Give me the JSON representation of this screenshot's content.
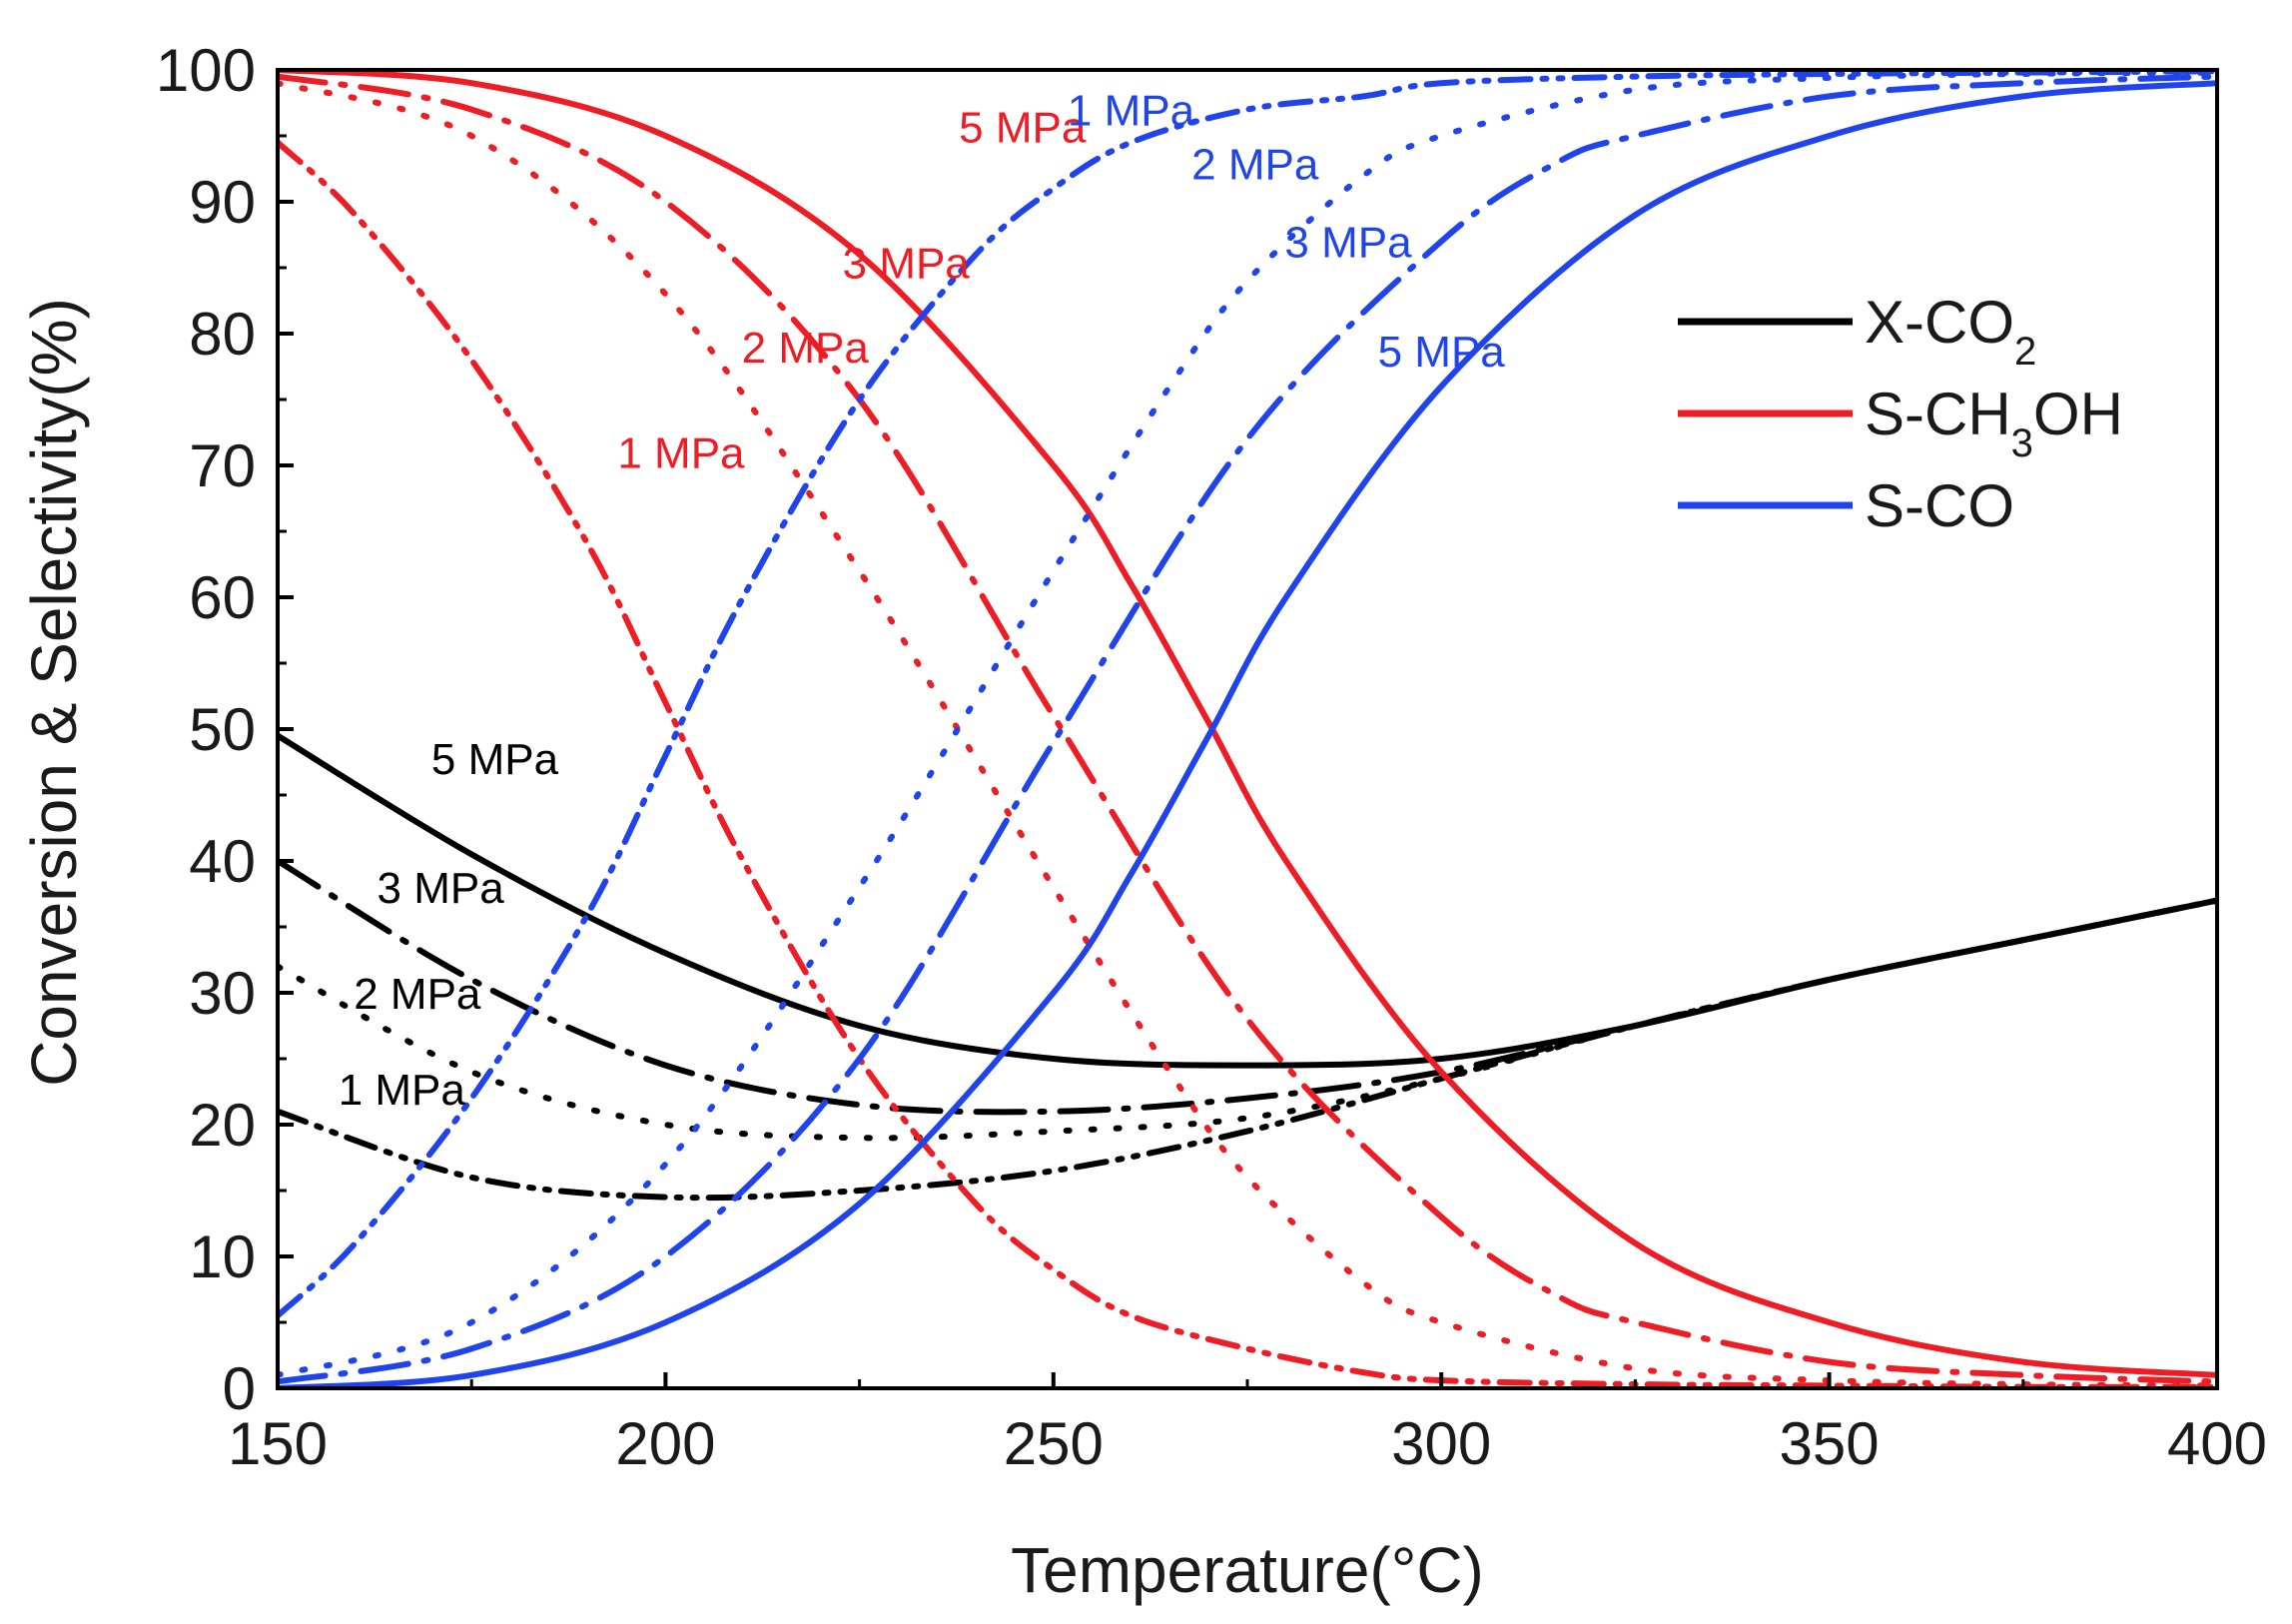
{
  "chart_data": {
    "type": "line",
    "title": "",
    "xlabel": "Temperature(°C)",
    "ylabel": "Conversion & Selectivity(%)",
    "xlim": [
      150,
      400
    ],
    "ylim": [
      0,
      100
    ],
    "xticks": [
      150,
      200,
      250,
      300,
      350,
      400
    ],
    "yticks": [
      0,
      10,
      20,
      30,
      40,
      50,
      60,
      70,
      80,
      90,
      100
    ],
    "legend": {
      "placement": "top-right",
      "entries": [
        {
          "label": "X-CO2",
          "color": "#000000"
        },
        {
          "label": "S-CH3OH",
          "color": "#ee1c25"
        },
        {
          "label": "S-CO",
          "color": "#1f44ee"
        }
      ]
    },
    "colors": {
      "X-CO2": "#000000",
      "S-CH3OH": "#ee1c25",
      "S-CO": "#1f44ee"
    },
    "series": [
      {
        "name": "X-CO2 1 MPa",
        "group": "X-CO2",
        "pressure": "1 MPa",
        "dash": "dashdotdot",
        "x": [
          150,
          175,
          200,
          225,
          250,
          275,
          300,
          325,
          350,
          375,
          400
        ],
        "y": [
          21,
          16,
          14.5,
          15,
          16.5,
          19.5,
          23.5,
          27.5,
          31,
          34,
          37
        ]
      },
      {
        "name": "X-CO2 2 MPa",
        "group": "X-CO2",
        "pressure": "2 MPa",
        "dash": "dot",
        "x": [
          150,
          175,
          200,
          225,
          250,
          275,
          300,
          325,
          350,
          375,
          400
        ],
        "y": [
          32,
          24,
          20,
          19,
          19.5,
          20.5,
          23.5,
          27.5,
          31,
          34,
          37
        ]
      },
      {
        "name": "X-CO2 3 MPa",
        "group": "X-CO2",
        "pressure": "3 MPa",
        "dash": "dashdot",
        "x": [
          150,
          175,
          200,
          225,
          250,
          275,
          300,
          325,
          350,
          375,
          400
        ],
        "y": [
          40,
          31,
          24.5,
          21.5,
          21,
          22,
          24,
          27.5,
          31,
          34,
          37
        ]
      },
      {
        "name": "X-CO2 5 MPa",
        "group": "X-CO2",
        "pressure": "5 MPa",
        "dash": "solid",
        "x": [
          150,
          175,
          200,
          225,
          250,
          275,
          300,
          325,
          350,
          375,
          400
        ],
        "y": [
          49.5,
          40.5,
          33,
          27.5,
          25,
          24.5,
          25,
          27.5,
          31,
          34,
          37
        ]
      },
      {
        "name": "S-CH3OH 1 MPa",
        "group": "S-CH3OH",
        "pressure": "1 MPa",
        "dash": "dashdotdot",
        "x": [
          150,
          160,
          175,
          190,
          200,
          210,
          225,
          240,
          250,
          260,
          275,
          290,
          300,
          325,
          350,
          375,
          400
        ],
        "y": [
          94.5,
          89,
          78,
          64,
          52,
          40,
          25,
          14,
          9,
          5.5,
          3,
          1.2,
          0.6,
          0.3,
          0.2,
          0.1,
          0.1
        ]
      },
      {
        "name": "S-CH3OH 2 MPa",
        "group": "S-CH3OH",
        "pressure": "2 MPa",
        "dash": "dot",
        "x": [
          150,
          175,
          200,
          225,
          250,
          265,
          275,
          290,
          300,
          325,
          350,
          375,
          400
        ],
        "y": [
          99,
          95,
          83,
          62,
          38,
          24,
          16,
          8,
          5,
          1.5,
          0.6,
          0.3,
          0.2
        ]
      },
      {
        "name": "S-CH3OH 3 MPa",
        "group": "S-CH3OH",
        "pressure": "3 MPa",
        "dash": "dashdot",
        "x": [
          150,
          175,
          200,
          225,
          250,
          275,
          300,
          315,
          325,
          350,
          375,
          400
        ],
        "y": [
          99.5,
          97,
          90,
          75,
          51,
          28,
          13,
          7,
          5,
          2,
          1,
          0.5
        ]
      },
      {
        "name": "S-CH3OH 5 MPa",
        "group": "S-CH3OH",
        "pressure": "5 MPa",
        "dash": "solid",
        "x": [
          150,
          175,
          200,
          225,
          250,
          260,
          270,
          280,
          300,
          325,
          350,
          375,
          400
        ],
        "y": [
          100,
          99,
          95,
          86,
          70,
          61,
          50.5,
          40,
          24,
          11,
          5,
          2,
          1
        ]
      },
      {
        "name": "S-CO 1 MPa",
        "group": "S-CO",
        "pressure": "1 MPa",
        "dash": "dashdotdot",
        "x": [
          150,
          160,
          175,
          190,
          200,
          210,
          225,
          240,
          250,
          260,
          275,
          290,
          300,
          325,
          350,
          375,
          400
        ],
        "y": [
          5.5,
          11,
          22,
          36,
          48,
          60,
          75,
          86,
          91,
          94.5,
          97,
          98,
          99,
          99.5,
          99.7,
          99.8,
          99.9
        ]
      },
      {
        "name": "S-CO 2 MPa",
        "group": "S-CO",
        "pressure": "2 MPa",
        "dash": "dot",
        "x": [
          150,
          175,
          200,
          225,
          250,
          265,
          275,
          290,
          300,
          325,
          350,
          375,
          400
        ],
        "y": [
          1,
          5,
          17,
          38,
          62,
          76,
          84,
          92,
          95,
          98.5,
          99.4,
          99.7,
          99.8
        ]
      },
      {
        "name": "S-CO 3 MPa",
        "group": "S-CO",
        "pressure": "3 MPa",
        "dash": "dashdot",
        "x": [
          150,
          175,
          200,
          225,
          250,
          275,
          300,
          315,
          325,
          350,
          375,
          400
        ],
        "y": [
          0.5,
          3,
          10,
          25,
          49,
          72,
          87,
          93,
          95,
          98,
          99,
          99.5
        ]
      },
      {
        "name": "S-CO 5 MPa",
        "group": "S-CO",
        "pressure": "5 MPa",
        "dash": "solid",
        "x": [
          150,
          175,
          200,
          225,
          250,
          260,
          270,
          280,
          300,
          325,
          350,
          375,
          400
        ],
        "y": [
          0,
          1,
          5,
          14,
          30,
          39,
          49.5,
          60,
          76,
          89,
          95,
          98,
          99
        ]
      }
    ],
    "annotations": [
      {
        "text": "5 MPa",
        "group": "S-CH3OH",
        "x": 246,
        "y": 94.5
      },
      {
        "text": "3 MPa",
        "group": "S-CH3OH",
        "x": 231,
        "y": 84.2
      },
      {
        "text": "2 MPa",
        "group": "S-CH3OH",
        "x": 218,
        "y": 77.8
      },
      {
        "text": "1 MPa",
        "group": "S-CH3OH",
        "x": 202,
        "y": 69.8
      },
      {
        "text": "1 MPa",
        "group": "S-CO",
        "x": 260,
        "y": 95.8
      },
      {
        "text": "2 MPa",
        "group": "S-CO",
        "x": 276,
        "y": 91.7
      },
      {
        "text": "3 MPa",
        "group": "S-CO",
        "x": 288,
        "y": 85.8
      },
      {
        "text": "5 MPa",
        "group": "S-CO",
        "x": 300,
        "y": 77.5
      },
      {
        "text": "5 MPa",
        "group": "X-CO2",
        "x": 178,
        "y": 46.6
      },
      {
        "text": "3 MPa",
        "group": "X-CO2",
        "x": 171,
        "y": 36.8
      },
      {
        "text": "2 MPa",
        "group": "X-CO2",
        "x": 168,
        "y": 28.8
      },
      {
        "text": "1 MPa",
        "group": "X-CO2",
        "x": 166,
        "y": 21.5
      }
    ]
  }
}
